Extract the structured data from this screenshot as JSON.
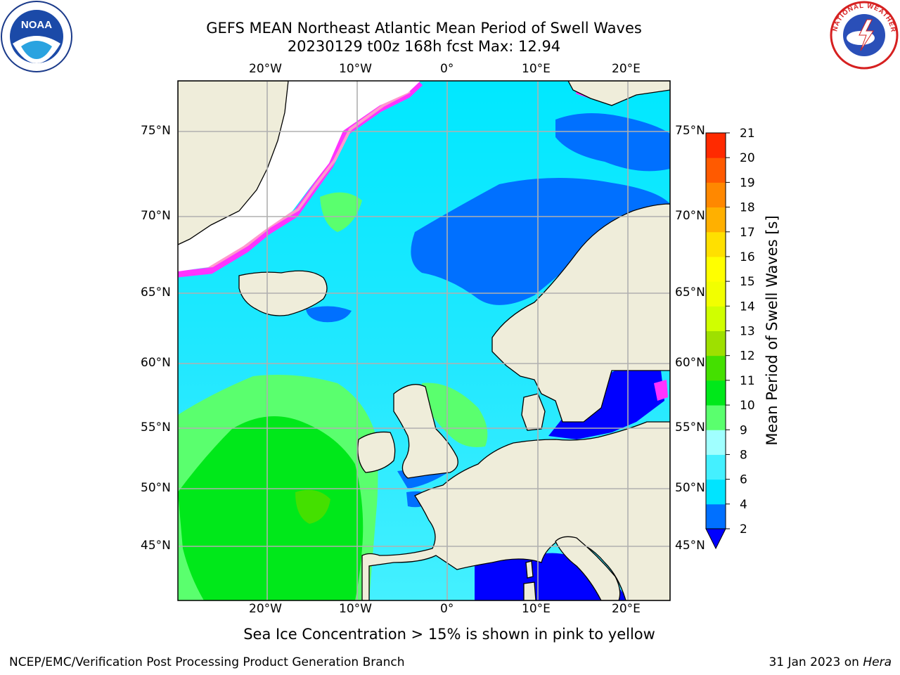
{
  "header": {
    "title_line1": "GEFS MEAN Northeast Atlantic Mean Period of Swell Waves",
    "title_line2": "20230129 t00z 168h fcst   Max: 12.94"
  },
  "map": {
    "lon_labels": [
      "20°W",
      "10°W",
      "0°",
      "10°E",
      "20°E"
    ],
    "lat_labels": [
      "75°N",
      "70°N",
      "65°N",
      "60°N",
      "55°N",
      "50°N",
      "45°N"
    ],
    "colors": {
      "land": "#efedda",
      "ice": "#ffffff",
      "grid": "#b0b0b0",
      "ice_edge": [
        "#ff33ff",
        "#ff99cc",
        "#ffee66"
      ]
    }
  },
  "colorbar": {
    "label": "Mean Period of Swell Waves [s]",
    "ticks": [
      "2",
      "4",
      "6",
      "8",
      "9",
      "10",
      "11",
      "12",
      "13",
      "14",
      "15",
      "16",
      "17",
      "18",
      "19",
      "20",
      "21"
    ],
    "colors": [
      "#0070ff",
      "#00e4ff",
      "#44f0ff",
      "#a0ffff",
      "#5aff6e",
      "#00e81a",
      "#44e000",
      "#9ee000",
      "#d0ff00",
      "#f2ff00",
      "#ffff00",
      "#ffe000",
      "#ffb000",
      "#ff8800",
      "#ff5a00",
      "#ff2a00"
    ],
    "under_color": "#0000ff"
  },
  "footer": {
    "note": "Sea Ice Concentration > 15% is shown in pink to yellow",
    "credit": "NCEP/EMC/Verification Post Processing Product Generation Branch",
    "date": "31 Jan 2023 on",
    "host": "Hera"
  },
  "logos": {
    "noaa_text": "NOAA",
    "nws_text": "NATIONAL WEATHER SERVICE"
  }
}
